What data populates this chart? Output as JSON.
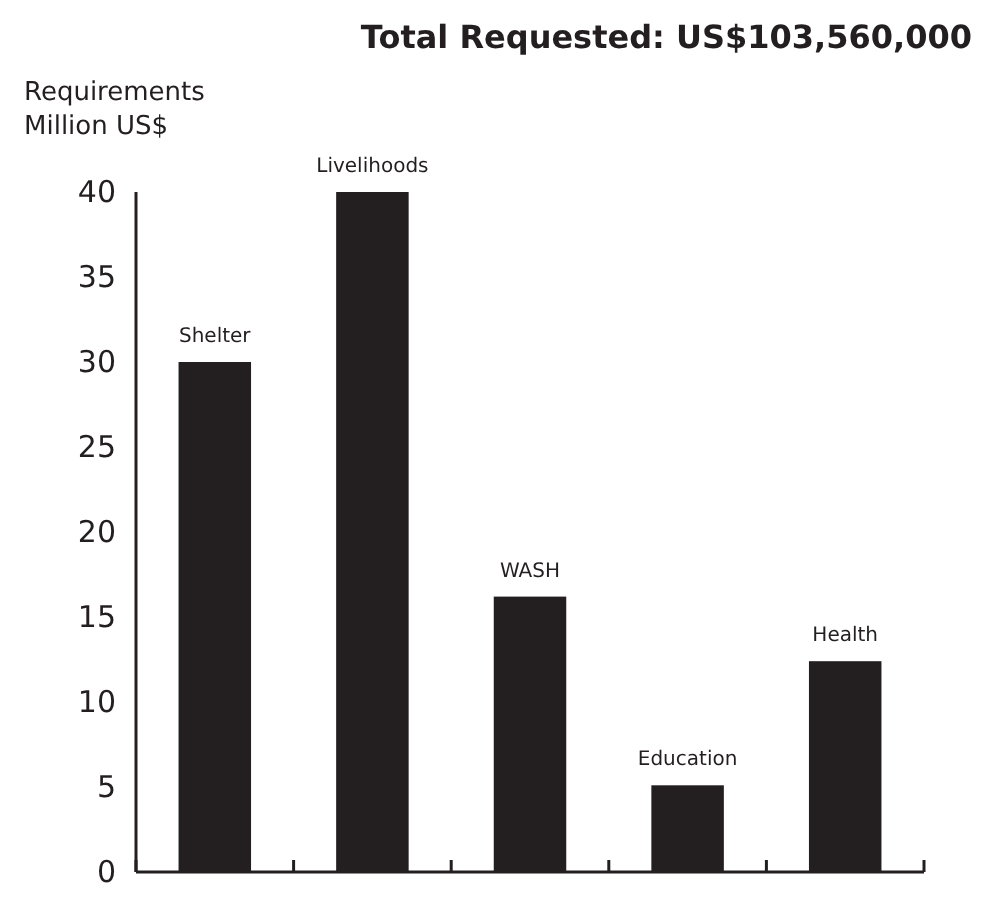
{
  "chart_data": {
    "type": "bar",
    "title": "Total Requested: US$103,560,000",
    "ylabel": "Requirements\nMillion US$",
    "categories": [
      "Shelter",
      "Livelihoods",
      "WASH",
      "Education",
      "Health"
    ],
    "values": [
      30,
      40,
      16.2,
      5.1,
      12.4
    ],
    "color": "#231f20",
    "ylim": [
      0,
      40
    ],
    "yticks": [
      0,
      5,
      10,
      15,
      20,
      25,
      30,
      35,
      40
    ],
    "grid": false
  }
}
